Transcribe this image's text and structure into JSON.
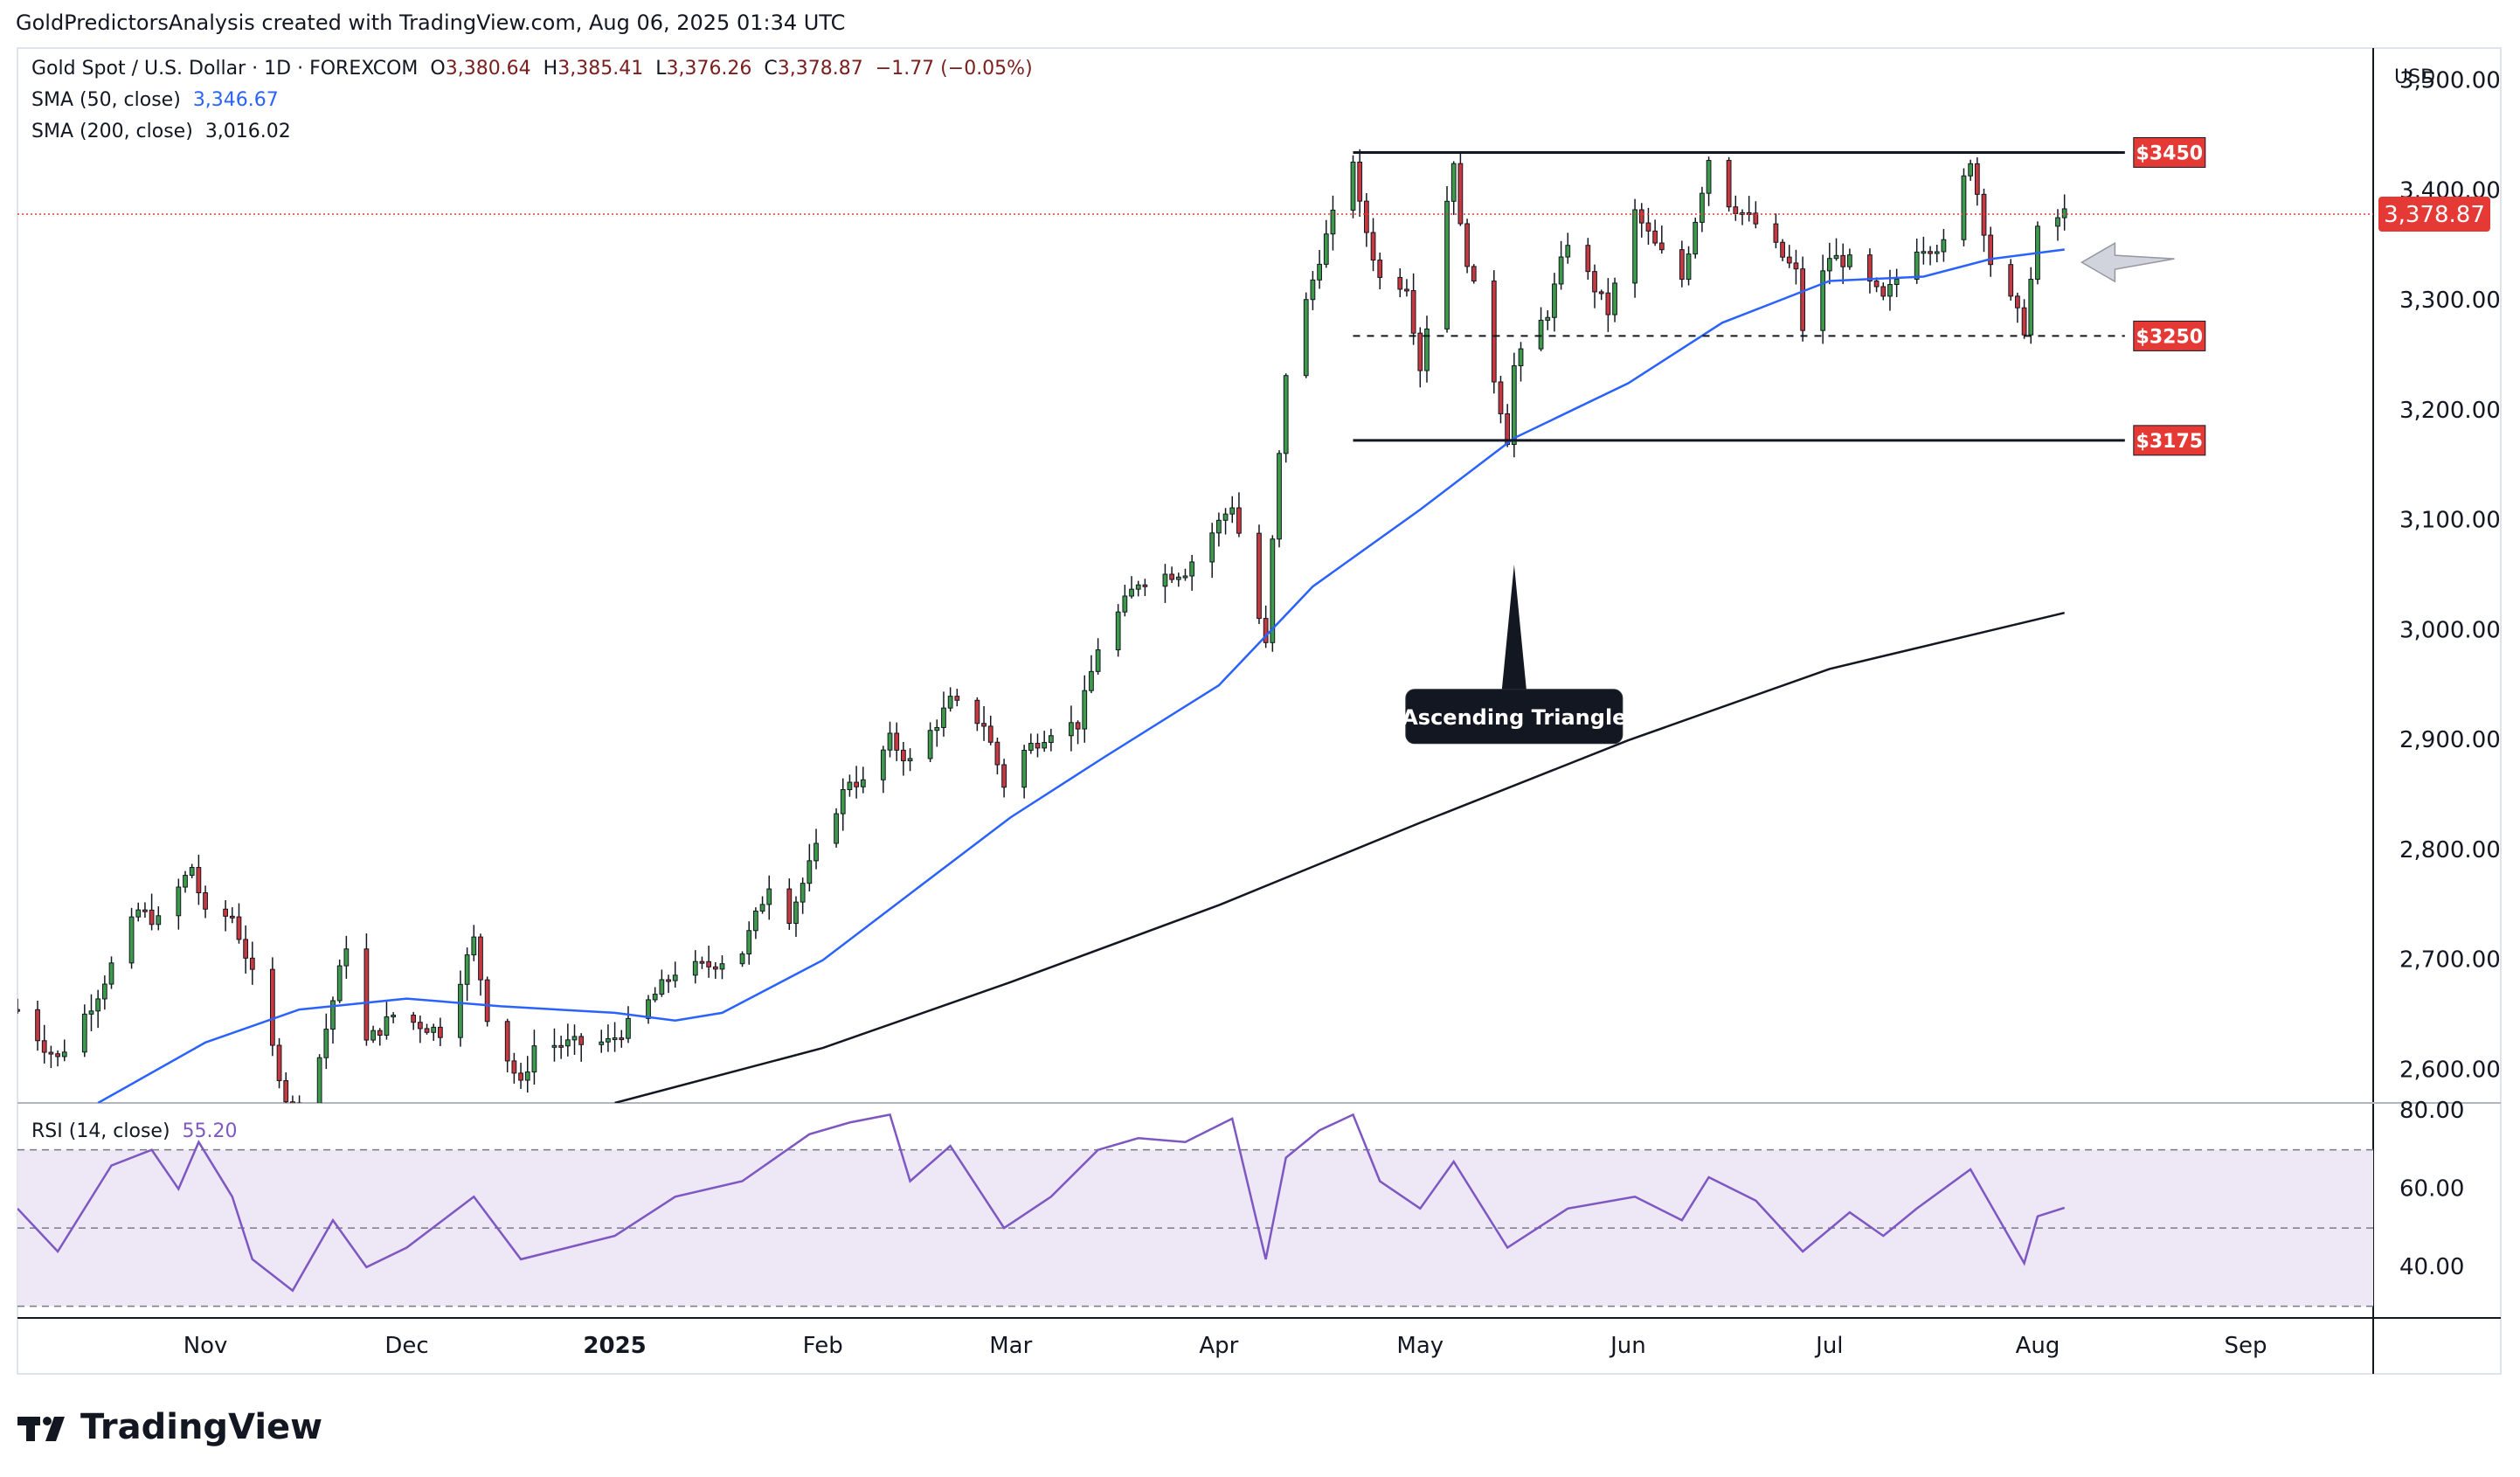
{
  "header": {
    "created_line": "GoldPredictorsAnalysis created with TradingView.com, Aug 06, 2025 01:34 UTC"
  },
  "legend": {
    "symbol": "Gold Spot / U.S. Dollar · 1D · FOREXCOM",
    "o_label": "O",
    "o_value": "3,380.64",
    "h_label": "H",
    "h_value": "3,385.41",
    "l_label": "L",
    "l_value": "3,376.26",
    "c_label": "C",
    "c_value": "3,378.87",
    "change": "−1.77 (−0.05%)",
    "sma50_label": "SMA (50, close)",
    "sma50_value": "3,346.67",
    "sma200_label": "SMA (200, close)",
    "sma200_value": "3,016.02",
    "rsi_label": "RSI (14, close)",
    "rsi_value": "55.20"
  },
  "brand": {
    "name": "TradingView"
  },
  "colors": {
    "up": "#26a69a",
    "up_fill": "#3d9a4a",
    "down": "#c8383f",
    "sma50": "#2962ff",
    "sma200": "#131722",
    "rsi": "#7e57c2",
    "rsi_band": "#ede7f6",
    "price_line": "#e53935",
    "level_tag": "#e53935"
  },
  "chart_data": [
    {
      "type": "candlestick",
      "currency": "USD",
      "y_axis": {
        "min": 2570,
        "max": 3530,
        "ticks": [
          "2,600.00",
          "2,700.00",
          "2,800.00",
          "2,900.00",
          "3,000.00",
          "3,100.00",
          "3,200.00",
          "3,300.00",
          "3,400.00",
          "3,500.00"
        ],
        "tick_values": [
          2600,
          2700,
          2800,
          2900,
          3000,
          3100,
          3200,
          3300,
          3400,
          3500
        ]
      },
      "x_axis": {
        "labels": [
          {
            "text": "Nov",
            "date": "2024-11-01"
          },
          {
            "text": "Dec",
            "date": "2024-12-01"
          },
          {
            "text": "2025",
            "date": "2025-01-01",
            "bold": true
          },
          {
            "text": "Feb",
            "date": "2025-02-01"
          },
          {
            "text": "Mar",
            "date": "2025-03-01"
          },
          {
            "text": "Apr",
            "date": "2025-04-01"
          },
          {
            "text": "May",
            "date": "2025-05-01"
          },
          {
            "text": "Jun",
            "date": "2025-06-01"
          },
          {
            "text": "Jul",
            "date": "2025-07-01"
          },
          {
            "text": "Aug",
            "date": "2025-08-01"
          },
          {
            "text": "Sep",
            "date": "2025-09-01"
          }
        ],
        "start_date": "2024-10-04",
        "end_date": "2025-09-20"
      },
      "last_price": "3,378.87",
      "last_price_value": 3378.87,
      "anchors": [
        {
          "date": "2024-10-04",
          "price": 2655
        },
        {
          "date": "2024-10-08",
          "price": 2622
        },
        {
          "date": "2024-10-10",
          "price": 2610
        },
        {
          "date": "2024-10-16",
          "price": 2670
        },
        {
          "date": "2024-10-22",
          "price": 2745
        },
        {
          "date": "2024-10-25",
          "price": 2735
        },
        {
          "date": "2024-10-30",
          "price": 2785
        },
        {
          "date": "2024-11-01",
          "price": 2740
        },
        {
          "date": "2024-11-05",
          "price": 2740
        },
        {
          "date": "2024-11-07",
          "price": 2705
        },
        {
          "date": "2024-11-08",
          "price": 2685
        },
        {
          "date": "2024-11-13",
          "price": 2575
        },
        {
          "date": "2024-11-14",
          "price": 2565
        },
        {
          "date": "2024-11-18",
          "price": 2612
        },
        {
          "date": "2024-11-22",
          "price": 2715
        },
        {
          "date": "2024-11-25",
          "price": 2625
        },
        {
          "date": "2024-11-29",
          "price": 2650
        },
        {
          "date": "2024-12-06",
          "price": 2635
        },
        {
          "date": "2024-12-11",
          "price": 2718
        },
        {
          "date": "2024-12-13",
          "price": 2650
        },
        {
          "date": "2024-12-18",
          "price": 2585
        },
        {
          "date": "2024-12-20",
          "price": 2622
        },
        {
          "date": "2024-12-31",
          "price": 2625
        },
        {
          "date": "2025-01-03",
          "price": 2640
        },
        {
          "date": "2025-01-10",
          "price": 2690
        },
        {
          "date": "2025-01-15",
          "price": 2695
        },
        {
          "date": "2025-01-20",
          "price": 2708
        },
        {
          "date": "2025-01-24",
          "price": 2770
        },
        {
          "date": "2025-01-27",
          "price": 2740
        },
        {
          "date": "2025-01-31",
          "price": 2800
        },
        {
          "date": "2025-02-05",
          "price": 2865
        },
        {
          "date": "2025-02-07",
          "price": 2860
        },
        {
          "date": "2025-02-11",
          "price": 2900
        },
        {
          "date": "2025-02-14",
          "price": 2880
        },
        {
          "date": "2025-02-20",
          "price": 2935
        },
        {
          "date": "2025-02-25",
          "price": 2915
        },
        {
          "date": "2025-02-28",
          "price": 2860
        },
        {
          "date": "2025-03-03",
          "price": 2890
        },
        {
          "date": "2025-03-07",
          "price": 2910
        },
        {
          "date": "2025-03-11",
          "price": 2915
        },
        {
          "date": "2025-03-14",
          "price": 2985
        },
        {
          "date": "2025-03-20",
          "price": 3045
        },
        {
          "date": "2025-03-27",
          "price": 3055
        },
        {
          "date": "2025-04-03",
          "price": 3115
        },
        {
          "date": "2025-04-08",
          "price": 2985
        },
        {
          "date": "2025-04-09",
          "price": 3080
        },
        {
          "date": "2025-04-11",
          "price": 3235
        },
        {
          "date": "2025-04-16",
          "price": 3340
        },
        {
          "date": "2025-04-21",
          "price": 3430
        },
        {
          "date": "2025-04-22",
          "price": 3385
        },
        {
          "date": "2025-04-25",
          "price": 3320
        },
        {
          "date": "2025-04-29",
          "price": 3315
        },
        {
          "date": "2025-05-01",
          "price": 3240
        },
        {
          "date": "2025-05-06",
          "price": 3430
        },
        {
          "date": "2025-05-07",
          "price": 3365
        },
        {
          "date": "2025-05-12",
          "price": 3230
        },
        {
          "date": "2025-05-14",
          "price": 3175
        },
        {
          "date": "2025-05-15",
          "price": 3240
        },
        {
          "date": "2025-05-20",
          "price": 3290
        },
        {
          "date": "2025-05-23",
          "price": 3355
        },
        {
          "date": "2025-05-29",
          "price": 3290
        },
        {
          "date": "2025-06-02",
          "price": 3380
        },
        {
          "date": "2025-06-05",
          "price": 3350
        },
        {
          "date": "2025-06-09",
          "price": 3320
        },
        {
          "date": "2025-06-13",
          "price": 3430
        },
        {
          "date": "2025-06-16",
          "price": 3390
        },
        {
          "date": "2025-06-20",
          "price": 3370
        },
        {
          "date": "2025-06-26",
          "price": 3325
        },
        {
          "date": "2025-06-27",
          "price": 3275
        },
        {
          "date": "2025-07-01",
          "price": 3340
        },
        {
          "date": "2025-07-04",
          "price": 3335
        },
        {
          "date": "2025-07-09",
          "price": 3300
        },
        {
          "date": "2025-07-14",
          "price": 3350
        },
        {
          "date": "2025-07-18",
          "price": 3350
        },
        {
          "date": "2025-07-22",
          "price": 3430
        },
        {
          "date": "2025-07-25",
          "price": 3335
        },
        {
          "date": "2025-07-30",
          "price": 3275
        },
        {
          "date": "2025-08-01",
          "price": 3362
        },
        {
          "date": "2025-08-05",
          "price": 3380
        }
      ],
      "sma50": {
        "label": "SMA (50, close)",
        "points": [
          {
            "date": "2024-10-16",
            "value": 2570
          },
          {
            "date": "2024-11-01",
            "value": 2625
          },
          {
            "date": "2024-11-15",
            "value": 2655
          },
          {
            "date": "2024-12-01",
            "value": 2665
          },
          {
            "date": "2024-12-15",
            "value": 2658
          },
          {
            "date": "2025-01-01",
            "value": 2652
          },
          {
            "date": "2025-01-10",
            "value": 2645
          },
          {
            "date": "2025-01-17",
            "value": 2652
          },
          {
            "date": "2025-02-01",
            "value": 2700
          },
          {
            "date": "2025-02-15",
            "value": 2765
          },
          {
            "date": "2025-03-01",
            "value": 2830
          },
          {
            "date": "2025-03-15",
            "value": 2885
          },
          {
            "date": "2025-04-01",
            "value": 2950
          },
          {
            "date": "2025-04-15",
            "value": 3040
          },
          {
            "date": "2025-05-01",
            "value": 3110
          },
          {
            "date": "2025-05-15",
            "value": 3175
          },
          {
            "date": "2025-06-01",
            "value": 3225
          },
          {
            "date": "2025-06-15",
            "value": 3280
          },
          {
            "date": "2025-07-01",
            "value": 3318
          },
          {
            "date": "2025-07-15",
            "value": 3322
          },
          {
            "date": "2025-07-25",
            "value": 3338
          },
          {
            "date": "2025-08-05",
            "value": 3346.67
          }
        ]
      },
      "sma200": {
        "label": "SMA (200, close)",
        "points": [
          {
            "date": "2025-01-01",
            "value": 2570
          },
          {
            "date": "2025-02-01",
            "value": 2620
          },
          {
            "date": "2025-03-01",
            "value": 2680
          },
          {
            "date": "2025-04-01",
            "value": 2750
          },
          {
            "date": "2025-05-01",
            "value": 2825
          },
          {
            "date": "2025-06-01",
            "value": 2900
          },
          {
            "date": "2025-07-01",
            "value": 2965
          },
          {
            "date": "2025-08-05",
            "value": 3016.02
          }
        ]
      },
      "levels": [
        {
          "label": "$3450",
          "price": 3435,
          "start": "2025-04-21",
          "end": "2025-08-14",
          "style": "solid"
        },
        {
          "label": "$3250",
          "price": 3268,
          "start": "2025-04-21",
          "end": "2025-08-14",
          "style": "dashed"
        },
        {
          "label": "$3175",
          "price": 3173,
          "start": "2025-04-21",
          "end": "2025-08-14",
          "style": "solid"
        }
      ],
      "annotations": [
        {
          "text": "Ascending Triangle",
          "date": "2025-05-15",
          "price": 2940,
          "pointer_price": 3060
        },
        {
          "type": "arrow",
          "date": "2025-08-12",
          "price": 3335,
          "direction": "left"
        }
      ]
    },
    {
      "type": "line",
      "name": "RSI (14, close)",
      "y_axis": {
        "min": 27,
        "max": 82,
        "ticks": [
          "40.00",
          "60.00",
          "80.00"
        ],
        "tick_values": [
          40,
          60,
          80
        ]
      },
      "bands": {
        "upper": 70,
        "middle": 50,
        "lower": 30
      },
      "points": [
        {
          "date": "2024-10-04",
          "value": 55
        },
        {
          "date": "2024-10-10",
          "value": 44
        },
        {
          "date": "2024-10-18",
          "value": 66
        },
        {
          "date": "2024-10-24",
          "value": 70
        },
        {
          "date": "2024-10-28",
          "value": 60
        },
        {
          "date": "2024-10-31",
          "value": 72
        },
        {
          "date": "2024-11-05",
          "value": 58
        },
        {
          "date": "2024-11-08",
          "value": 42
        },
        {
          "date": "2024-11-14",
          "value": 34
        },
        {
          "date": "2024-11-20",
          "value": 52
        },
        {
          "date": "2024-11-25",
          "value": 40
        },
        {
          "date": "2024-12-01",
          "value": 45
        },
        {
          "date": "2024-12-11",
          "value": 58
        },
        {
          "date": "2024-12-18",
          "value": 42
        },
        {
          "date": "2025-01-01",
          "value": 48
        },
        {
          "date": "2025-01-10",
          "value": 58
        },
        {
          "date": "2025-01-20",
          "value": 62
        },
        {
          "date": "2025-01-30",
          "value": 74
        },
        {
          "date": "2025-02-05",
          "value": 77
        },
        {
          "date": "2025-02-11",
          "value": 79
        },
        {
          "date": "2025-02-14",
          "value": 62
        },
        {
          "date": "2025-02-20",
          "value": 71
        },
        {
          "date": "2025-02-28",
          "value": 50
        },
        {
          "date": "2025-03-07",
          "value": 58
        },
        {
          "date": "2025-03-14",
          "value": 70
        },
        {
          "date": "2025-03-20",
          "value": 73
        },
        {
          "date": "2025-03-27",
          "value": 72
        },
        {
          "date": "2025-04-03",
          "value": 78
        },
        {
          "date": "2025-04-08",
          "value": 42
        },
        {
          "date": "2025-04-11",
          "value": 68
        },
        {
          "date": "2025-04-16",
          "value": 75
        },
        {
          "date": "2025-04-21",
          "value": 79
        },
        {
          "date": "2025-04-25",
          "value": 62
        },
        {
          "date": "2025-05-01",
          "value": 55
        },
        {
          "date": "2025-05-06",
          "value": 67
        },
        {
          "date": "2025-05-14",
          "value": 45
        },
        {
          "date": "2025-05-23",
          "value": 55
        },
        {
          "date": "2025-06-02",
          "value": 58
        },
        {
          "date": "2025-06-09",
          "value": 52
        },
        {
          "date": "2025-06-13",
          "value": 63
        },
        {
          "date": "2025-06-20",
          "value": 57
        },
        {
          "date": "2025-06-27",
          "value": 44
        },
        {
          "date": "2025-07-04",
          "value": 54
        },
        {
          "date": "2025-07-09",
          "value": 48
        },
        {
          "date": "2025-07-14",
          "value": 55
        },
        {
          "date": "2025-07-22",
          "value": 65
        },
        {
          "date": "2025-07-30",
          "value": 41
        },
        {
          "date": "2025-08-01",
          "value": 53
        },
        {
          "date": "2025-08-05",
          "value": 55.2
        }
      ]
    }
  ]
}
